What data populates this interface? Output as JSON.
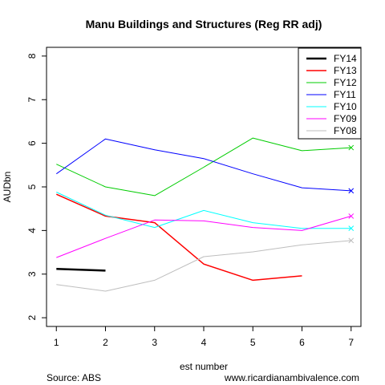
{
  "chart_data": {
    "type": "line",
    "title": "Manu Buildings and Structures (Reg RR adj)",
    "xlabel": "est number",
    "ylabel": "AUDbn",
    "xlim": [
      0.8,
      7.2
    ],
    "ylim": [
      1.8,
      8.2
    ],
    "x_ticks": [
      1,
      2,
      3,
      4,
      5,
      6,
      7
    ],
    "y_ticks": [
      2,
      3,
      4,
      5,
      6,
      7,
      8
    ],
    "grid": false,
    "legend_position": "top-right",
    "source": "Source: ABS",
    "website": "www.ricardianambivalence.com",
    "series": [
      {
        "name": "FY14",
        "color": "#000000",
        "width": 2.5,
        "marker_last": false,
        "x": [
          1,
          2
        ],
        "y": [
          3.12,
          3.08
        ]
      },
      {
        "name": "FY13",
        "color": "#ff0000",
        "width": 1.5,
        "marker_last": false,
        "x": [
          1,
          2,
          3,
          4,
          5,
          6
        ],
        "y": [
          4.83,
          4.33,
          4.18,
          3.23,
          2.86,
          2.96
        ]
      },
      {
        "name": "FY12",
        "color": "#00cc00",
        "width": 1,
        "marker_last": true,
        "x": [
          1,
          2,
          3,
          4,
          5,
          6,
          7
        ],
        "y": [
          5.52,
          5.0,
          4.8,
          5.45,
          6.12,
          5.83,
          5.9
        ]
      },
      {
        "name": "FY11",
        "color": "#0000ff",
        "width": 1,
        "marker_last": true,
        "x": [
          1,
          2,
          3,
          4,
          5,
          6,
          7
        ],
        "y": [
          5.3,
          6.1,
          5.85,
          5.65,
          5.3,
          4.98,
          4.91
        ]
      },
      {
        "name": "FY10",
        "color": "#00ffff",
        "width": 1,
        "marker_last": true,
        "x": [
          1,
          2,
          3,
          4,
          5,
          6,
          7
        ],
        "y": [
          4.88,
          4.35,
          4.07,
          4.46,
          4.18,
          4.05,
          4.05
        ]
      },
      {
        "name": "FY09",
        "color": "#ff00ff",
        "width": 1,
        "marker_last": true,
        "x": [
          1,
          2,
          3,
          4,
          5,
          6,
          7
        ],
        "y": [
          3.38,
          3.82,
          4.24,
          4.22,
          4.07,
          4.0,
          4.33
        ]
      },
      {
        "name": "FY08",
        "color": "#bebebe",
        "width": 1,
        "marker_last": true,
        "x": [
          1,
          2,
          3,
          4,
          5,
          6,
          7
        ],
        "y": [
          2.76,
          2.61,
          2.86,
          3.4,
          3.51,
          3.67,
          3.77
        ]
      }
    ]
  }
}
